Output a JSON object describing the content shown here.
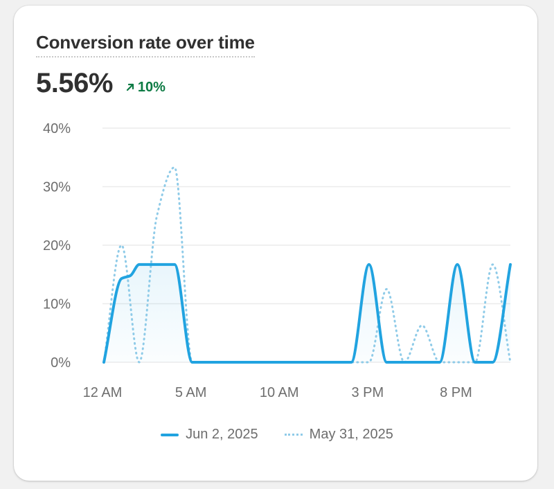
{
  "card": {
    "title": "Conversion rate over time",
    "metric": "5.56%",
    "delta": "10%",
    "delta_direction": "up",
    "delta_color": "#0c7a43",
    "delta_icon": "arrow-up-right-icon"
  },
  "chart_data": {
    "type": "line",
    "title": "Conversion rate over time",
    "xlabel": "",
    "ylabel": "",
    "ylim": [
      0,
      40
    ],
    "yticks": [
      0,
      10,
      20,
      30,
      40
    ],
    "ytick_labels": [
      "0%",
      "10%",
      "20%",
      "30%",
      "40%"
    ],
    "xlim": [
      0,
      23
    ],
    "xticks": [
      0,
      5,
      10,
      15,
      20
    ],
    "xtick_labels": [
      "12 AM",
      "5 AM",
      "10 AM",
      "3 PM",
      "8 PM"
    ],
    "grid": true,
    "legend_position": "bottom-center",
    "series": [
      {
        "name": "Jun 2, 2025",
        "style": "solid",
        "color": "#21a3e0",
        "x": [
          0,
          1,
          1.5,
          2,
          3,
          4,
          5,
          6,
          7,
          8,
          9,
          10,
          11,
          12,
          13,
          14,
          15,
          16,
          17,
          18,
          19,
          20,
          21,
          22,
          23
        ],
        "y": [
          0,
          14.3,
          14.8,
          16.7,
          16.7,
          16.7,
          0,
          0,
          0,
          0,
          0,
          0,
          0,
          0,
          0,
          0,
          16.7,
          0,
          0,
          0,
          0,
          16.7,
          0,
          0,
          16.7
        ]
      },
      {
        "name": "May 31, 2025",
        "style": "dotted",
        "color": "#8fcbe8",
        "x": [
          0,
          1,
          2,
          3,
          4,
          5,
          6,
          7,
          8,
          9,
          10,
          11,
          12,
          13,
          14,
          15,
          16,
          17,
          18,
          19,
          20,
          21,
          22,
          23
        ],
        "y": [
          0,
          20,
          0,
          25,
          33.3,
          0,
          0,
          0,
          0,
          0,
          0,
          0,
          0,
          0,
          0,
          0,
          12.5,
          0,
          6.3,
          0,
          0,
          0,
          16.7,
          0
        ]
      }
    ]
  }
}
